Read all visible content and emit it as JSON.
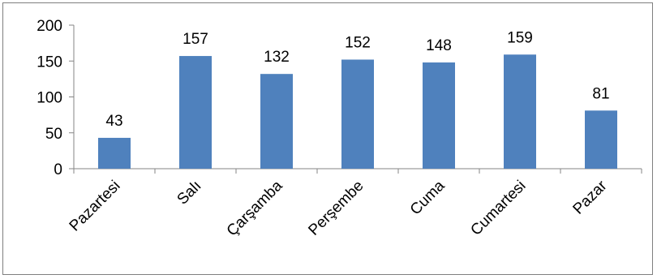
{
  "chart_data": {
    "type": "bar",
    "title": "",
    "xlabel": "",
    "ylabel": "",
    "categories": [
      "Pazartesi",
      "Salı",
      "Çarşamba",
      "Perşembe",
      "Cuma",
      "Cumartesi",
      "Pazar"
    ],
    "values": [
      43,
      157,
      132,
      152,
      148,
      159,
      81
    ],
    "ylim": [
      0,
      200
    ],
    "yticks": [
      0,
      50,
      100,
      150,
      200
    ],
    "ytick_labels": [
      "0",
      "50",
      "100",
      "150",
      "200"
    ],
    "data_labels": [
      "43",
      "157",
      "132",
      "152",
      "148",
      "159",
      "81"
    ],
    "bar_color": "#4f81bd",
    "grid": false,
    "legend": "none"
  }
}
